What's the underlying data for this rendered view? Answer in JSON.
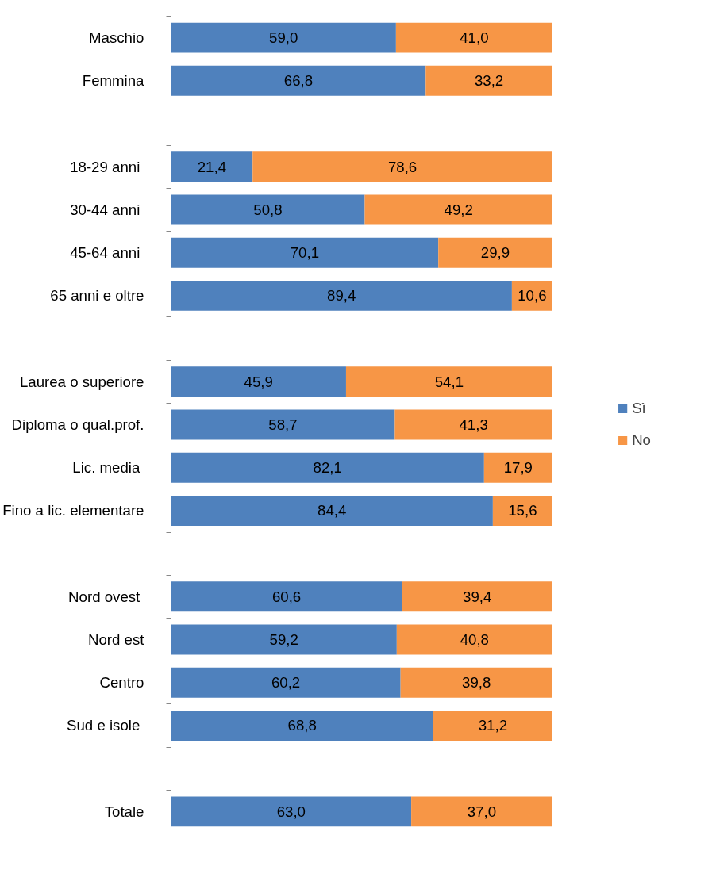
{
  "chart_data": {
    "type": "bar",
    "orientation": "horizontal",
    "stacked": true,
    "legend": "right",
    "grid": false,
    "categories": [
      "Maschio",
      "Femmina",
      null,
      "18-29  anni",
      "30-44  anni",
      "45-64  anni",
      "65 anni e oltre",
      null,
      "Laurea o superiore",
      "Diploma o qual.prof.",
      "Lic.  media",
      "Fino a lic. elementare",
      null,
      "Nord  ovest",
      "Nord est",
      "Centro",
      "Sud e  isole",
      null,
      "Totale"
    ],
    "series": [
      {
        "name": "Sì",
        "color": "#4f81bd",
        "values": [
          59.0,
          66.8,
          null,
          21.4,
          50.8,
          70.1,
          89.4,
          null,
          45.9,
          58.7,
          82.1,
          84.4,
          null,
          60.6,
          59.2,
          60.2,
          68.8,
          null,
          63.0
        ],
        "value_labels": [
          "59,0",
          "66,8",
          null,
          "21,4",
          "50,8",
          "70,1",
          "89,4",
          null,
          "45,9",
          "58,7",
          "82,1",
          "84,4",
          null,
          "60,6",
          "59,2",
          "60,2",
          "68,8",
          null,
          "63,0"
        ]
      },
      {
        "name": "No",
        "color": "#f79646",
        "values": [
          41.0,
          33.2,
          null,
          78.6,
          49.2,
          29.9,
          10.6,
          null,
          54.1,
          41.3,
          17.9,
          15.6,
          null,
          39.4,
          40.8,
          39.8,
          31.2,
          null,
          37.0
        ],
        "value_labels": [
          "41,0",
          "33,2",
          null,
          "78,6",
          "49,2",
          "29,9",
          "10,6",
          null,
          "54,1",
          "41,3",
          "17,9",
          "15,6",
          null,
          "39,4",
          "40,8",
          "39,8",
          "31,2",
          null,
          "37,0"
        ]
      }
    ]
  }
}
